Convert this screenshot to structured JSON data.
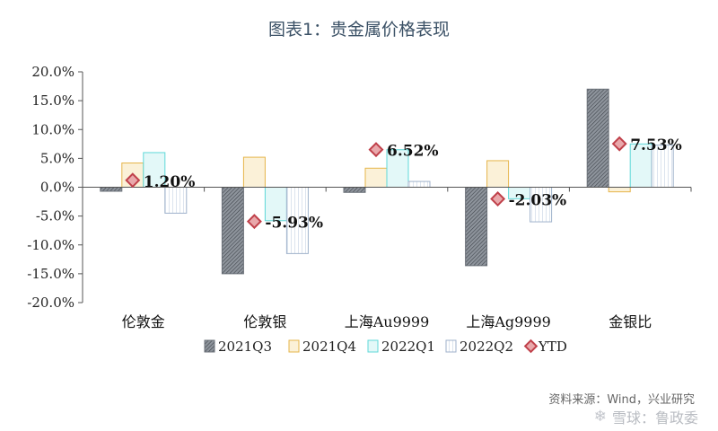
{
  "title": "图表1：贵金属价格表现",
  "source": "资料来源：Wind，兴业研究",
  "watermark": "雪球：鲁政委",
  "colors": {
    "2021Q3": "#6b7179",
    "2021Q4": "#e6b54a",
    "2022Q1": "#5fd8d8",
    "2022Q2": "#b9c9de",
    "YTD": "#c0404a"
  },
  "chart_data": {
    "type": "bar",
    "categories": [
      "伦敦金",
      "伦敦银",
      "上海Au9999",
      "上海Ag9999",
      "金银比"
    ],
    "ylim": [
      -20,
      20
    ],
    "yticks": [
      20,
      15,
      10,
      5,
      0,
      -5,
      -10,
      -15,
      -20
    ],
    "ytick_labels": [
      "20.0%",
      "15.0%",
      "10.0%",
      "5.0%",
      "0.0%",
      "-5.0%",
      "-10.0%",
      "-15.0%",
      "-20.0%"
    ],
    "series": [
      {
        "name": "2021Q3",
        "values": [
          -0.7,
          -15.0,
          -0.9,
          -13.6,
          17.0
        ]
      },
      {
        "name": "2021Q4",
        "values": [
          4.2,
          5.2,
          3.3,
          4.6,
          -0.8
        ]
      },
      {
        "name": "2022Q1",
        "values": [
          6.0,
          -5.8,
          6.5,
          -2.0,
          7.5
        ]
      },
      {
        "name": "2022Q2",
        "values": [
          -4.5,
          -11.5,
          1.0,
          -6.0,
          7.3
        ]
      }
    ],
    "ytd": {
      "name": "YTD",
      "values": [
        1.2,
        -5.93,
        6.52,
        -2.03,
        7.53
      ],
      "labels": [
        "1.20%",
        "-5.93%",
        "6.52%",
        "-2.03%",
        "7.53%"
      ]
    },
    "legend": [
      "2021Q3",
      "2021Q4",
      "2022Q1",
      "2022Q2",
      "YTD"
    ],
    "legend_position": "bottom",
    "grid": false
  }
}
